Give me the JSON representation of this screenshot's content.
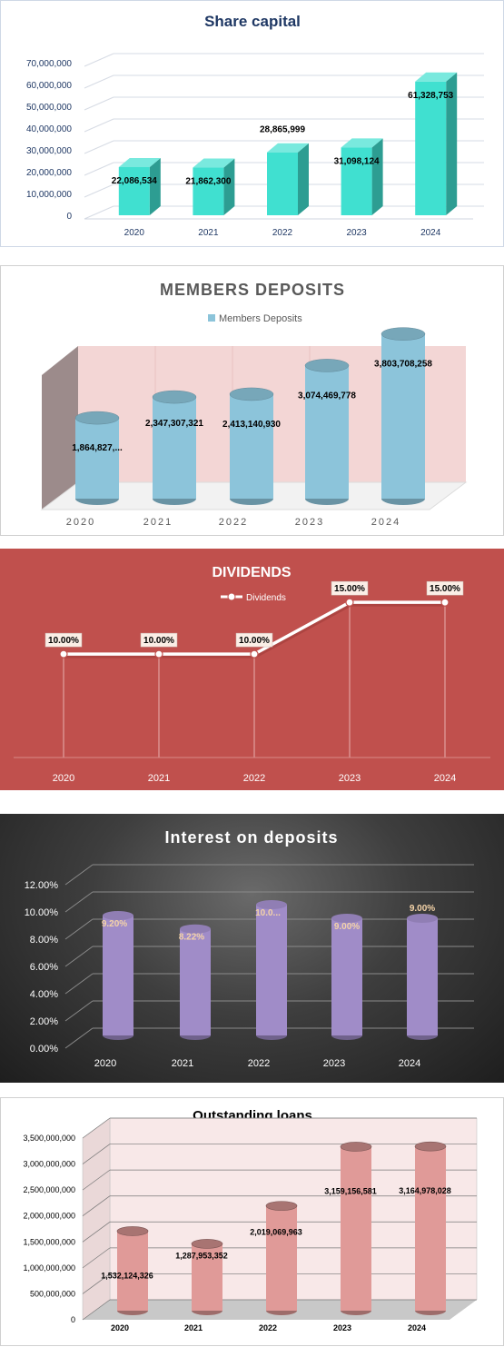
{
  "chart_data": [
    {
      "type": "bar",
      "title": "Share capital",
      "categories": [
        "2020",
        "2021",
        "2022",
        "2023",
        "2024"
      ],
      "values": [
        22086534,
        21862300,
        28865999,
        31098124,
        61328753
      ],
      "data_labels": [
        "22,086,534",
        "21,862,300",
        "28,865,999",
        "31,098,124",
        "61,328,753"
      ],
      "y_ticks": [
        "0",
        "10,000,000",
        "20,000,000",
        "30,000,000",
        "40,000,000",
        "50,000,000",
        "60,000,000",
        "70,000,000"
      ],
      "ylim": [
        0,
        70000000
      ],
      "grid": true,
      "legend": "none",
      "colors": {
        "bar": "#40e0d0",
        "title": "#1f3864"
      }
    },
    {
      "type": "bar",
      "title": "MEMBERS DEPOSITS",
      "categories": [
        "2020",
        "2021",
        "2022",
        "2023",
        "2024"
      ],
      "series": [
        {
          "name": "Members Deposits",
          "values": [
            1864827000,
            2347307321,
            2413140930,
            3074469778,
            3803708258
          ]
        }
      ],
      "data_labels": [
        "1,864,827,...",
        "2,347,307,321",
        "2,413,140,930",
        "3,074,469,778",
        "3,803,708,258"
      ],
      "ylim": [
        0,
        4300000000
      ],
      "grid": true,
      "legend": "top",
      "colors": {
        "bar": "#8cc4da",
        "wall": "#f3d6d5",
        "side": "#9c8b8b"
      }
    },
    {
      "type": "line",
      "title": "DIVIDENDS",
      "categories": [
        "2020",
        "2021",
        "2022",
        "2023",
        "2024"
      ],
      "series": [
        {
          "name": "Dividends",
          "values": [
            10,
            10,
            10,
            15,
            15
          ]
        }
      ],
      "data_labels": [
        "10.00%",
        "10.00%",
        "10.00%",
        "15.00%",
        "15.00%"
      ],
      "ylim": [
        0,
        18
      ],
      "grid": false,
      "legend": "top",
      "colors": {
        "background": "#c0504d",
        "line": "#ffffff"
      }
    },
    {
      "type": "bar",
      "title": "Interest on deposits",
      "categories": [
        "2020",
        "2021",
        "2022",
        "2023",
        "2024"
      ],
      "values": [
        9.2,
        8.22,
        10.0,
        9.0,
        9.0
      ],
      "data_labels": [
        "9.20%",
        "8.22%",
        "10.0...",
        "9.00%",
        "9.00%"
      ],
      "y_ticks": [
        "0.00%",
        "2.00%",
        "4.00%",
        "6.00%",
        "8.00%",
        "10.00%",
        "12.00%"
      ],
      "ylim": [
        0,
        12
      ],
      "grid": true,
      "legend": "none",
      "colors": {
        "bar": "#a08cc8",
        "label": "#f4d3a8"
      }
    },
    {
      "type": "bar",
      "title": "Outstanding loans",
      "categories": [
        "2020",
        "2021",
        "2022",
        "2023",
        "2024"
      ],
      "values": [
        1532124326,
        1287953352,
        2019069963,
        3159156581,
        3164978028
      ],
      "data_labels": [
        "1,532,124,326",
        "1,287,953,352",
        "2,019,069,963",
        "3,159,156,581",
        "3,164,978,028"
      ],
      "y_ticks": [
        "0",
        "500,000,000",
        "1,000,000,000",
        "1,500,000,000",
        "2,000,000,000",
        "2,500,000,000",
        "3,000,000,000",
        "3,500,000,000"
      ],
      "ylim": [
        0,
        3500000000
      ],
      "grid": true,
      "legend": "none",
      "colors": {
        "bar": "#e09a98",
        "wall": "#f8e8e8"
      }
    }
  ]
}
